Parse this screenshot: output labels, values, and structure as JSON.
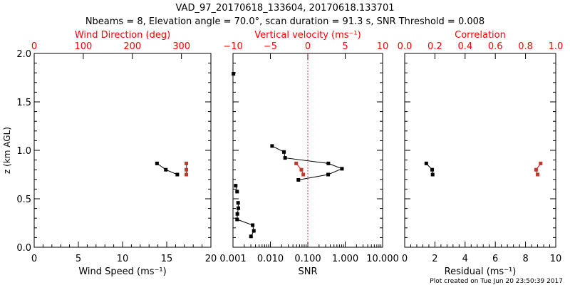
{
  "title": "VAD_97_20170618_133604, 20170618.133701",
  "subtitle": "Nbeams = 8, Elevation angle = 70.0°, scan duration = 91.3 s, SNR Threshold = 0.008",
  "footer": "Plot created on Tue Jun 20 23:50:39 2017",
  "colors": {
    "primary": "#000000",
    "secondary": "#ff0000",
    "secondary_marker": "#c0392b"
  },
  "chart_data": [
    {
      "type": "line",
      "ylabel": "z (km AGL)",
      "ylim": [
        0,
        2.0
      ],
      "yticks": [
        "0.0",
        "0.5",
        "1.0",
        "1.5",
        "2.0"
      ],
      "xlabel": "Wind Speed (ms⁻¹)",
      "xlim": [
        0,
        20
      ],
      "xscale": "linear",
      "xticks": [
        "0",
        "5",
        "10",
        "15",
        "20"
      ],
      "top_xlabel": "Wind Direction (deg)",
      "top_xlim": [
        0,
        360
      ],
      "top_xticks": [
        "0",
        "100",
        "200",
        "300"
      ],
      "series": [
        {
          "name": "Wind Speed",
          "axis": "bottom",
          "color": "#000000",
          "x": [
            13.9,
            14.9,
            16.2
          ],
          "z": [
            0.865,
            0.8,
            0.75
          ]
        },
        {
          "name": "Wind Direction",
          "axis": "top",
          "color": "#c0392b",
          "x": [
            310,
            310,
            310
          ],
          "z": [
            0.865,
            0.8,
            0.75
          ]
        }
      ]
    },
    {
      "type": "line",
      "ylim": [
        0,
        2.0
      ],
      "xlabel": "SNR",
      "xlim": [
        0.001,
        10
      ],
      "xscale": "log",
      "xticks": [
        "0.001",
        "0.010",
        "0.100",
        "1.000",
        "10.000"
      ],
      "top_xlabel": "Vertical velocity (ms⁻¹)",
      "top_xlim": [
        -10,
        10
      ],
      "top_xticks": [
        "−10",
        "−5",
        "0",
        "5",
        "10"
      ],
      "reference_line": {
        "axis": "top",
        "value": 0,
        "style": "dotted"
      },
      "series": [
        {
          "name": "SNR",
          "axis": "bottom",
          "color": "#000000",
          "x": [
            0.0111,
            0.0231,
            0.0247,
            0.355,
            0.819,
            0.35,
            0.056,
            null,
            0.00118,
            0.00129,
            null,
            0.00137,
            0.00139,
            0.00131,
            0.00129,
            0.00336,
            0.00361,
            0.00303
          ],
          "z": [
            1.045,
            0.983,
            0.922,
            0.865,
            0.81,
            0.75,
            0.695,
            null,
            0.635,
            0.574,
            null,
            0.458,
            0.403,
            0.344,
            0.287,
            0.228,
            0.169,
            0.112
          ]
        },
        {
          "name": "SNR isolated",
          "axis": "bottom",
          "color": "#000000",
          "x": [
            0.00103
          ],
          "z": [
            1.79
          ],
          "marker_only": true
        },
        {
          "name": "Vertical velocity",
          "axis": "top",
          "color": "#c0392b",
          "x": [
            -1.55,
            -0.86,
            -0.6
          ],
          "z": [
            0.865,
            0.8,
            0.75
          ]
        }
      ]
    },
    {
      "type": "line",
      "ylim": [
        0,
        2.0
      ],
      "xlabel": "Residual (ms⁻¹)",
      "xlim": [
        0,
        10
      ],
      "xscale": "linear",
      "xticks": [
        "0",
        "2",
        "4",
        "6",
        "8",
        "10"
      ],
      "top_xlabel": "Correlation",
      "top_xlim": [
        0,
        1
      ],
      "top_xticks": [
        "0.0",
        "0.2",
        "0.4",
        "0.6",
        "0.8",
        "1.0"
      ],
      "series": [
        {
          "name": "Residual",
          "axis": "bottom",
          "color": "#000000",
          "x": [
            1.43,
            1.82,
            1.85
          ],
          "z": [
            0.865,
            0.8,
            0.75
          ]
        },
        {
          "name": "Correlation",
          "axis": "top",
          "color": "#c0392b",
          "x": [
            0.9,
            0.87,
            0.88
          ],
          "z": [
            0.865,
            0.8,
            0.75
          ]
        }
      ]
    }
  ]
}
